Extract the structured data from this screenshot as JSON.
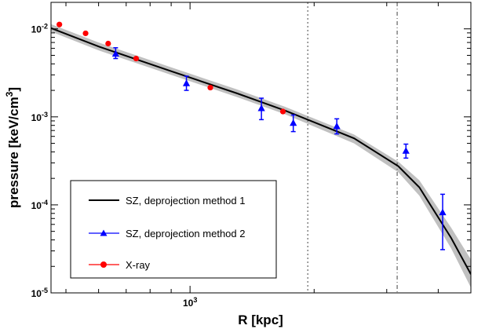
{
  "chart_data": {
    "type": "scatter",
    "xlabel": "R [kpc]",
    "ylabel_main": "pressure [keV/cm",
    "ylabel_sup": "3",
    "ylabel_tail": "]",
    "xscale": "log",
    "yscale": "log",
    "xlim": [
      460,
      4800
    ],
    "ylim": [
      1e-05,
      0.02
    ],
    "x_tick_labels": [
      {
        "value": 1000,
        "base": "10",
        "exp": "3"
      }
    ],
    "y_tick_labels": [
      {
        "value": 0.01,
        "base": "10",
        "exp": "-2"
      },
      {
        "value": 0.001,
        "base": "10",
        "exp": "-3"
      },
      {
        "value": 0.0001,
        "base": "10",
        "exp": "-4"
      },
      {
        "value": 1e-05,
        "base": "10",
        "exp": "-5"
      }
    ],
    "x_minor_ticks": [
      500,
      600,
      700,
      800,
      900,
      2000,
      3000,
      4000
    ],
    "y_minor_ticks": [
      2e-05,
      3e-05,
      4e-05,
      5e-05,
      6e-05,
      7e-05,
      8e-05,
      9e-05,
      0.0002,
      0.0003,
      0.0004,
      0.0005,
      0.0006,
      0.0007,
      0.0008,
      0.0009,
      0.002,
      0.003,
      0.004,
      0.005,
      0.006,
      0.007,
      0.008,
      0.009,
      0.02
    ],
    "vertical_lines": [
      {
        "x": 1930,
        "style": "dotted"
      },
      {
        "x": 3180,
        "style": "dashdot"
      }
    ],
    "legend_position": "bottom-left",
    "series": [
      {
        "name": "SZ, deprojection method 1",
        "kind": "line",
        "color": "#000000",
        "band_color": "#c0c0c0",
        "x": [
          460,
          600,
          900,
          1300,
          1700,
          2500,
          3200,
          3600,
          4300,
          4800
        ],
        "y": [
          0.0102,
          0.0063,
          0.0033,
          0.00185,
          0.00118,
          0.00057,
          0.000275,
          0.000158,
          4.2e-05,
          1.63e-05
        ],
        "band_low": [
          0.0093,
          0.0057,
          0.003,
          0.00168,
          0.00107,
          0.0005,
          0.000235,
          0.000127,
          3.2e-05,
          1.15e-05
        ],
        "band_high": [
          0.0113,
          0.007,
          0.00365,
          0.00205,
          0.0013,
          0.00063,
          0.00031,
          0.00019,
          5.5e-05,
          2.4e-05
        ]
      },
      {
        "name": "SZ, deprojection method 2",
        "kind": "marker-errorbar",
        "marker": "triangle",
        "color": "#0000ff",
        "x": [
          660,
          980,
          1490,
          1780,
          2270,
          3340,
          4100
        ],
        "y": [
          0.0052,
          0.0024,
          0.00125,
          0.00085,
          0.00078,
          0.00041,
          8.2e-05
        ],
        "y_low": [
          0.0046,
          0.002,
          0.00093,
          0.00068,
          0.00064,
          0.00034,
          3.1e-05
        ],
        "y_high": [
          0.0061,
          0.0029,
          0.00163,
          0.00105,
          0.00095,
          0.00049,
          0.000132
        ]
      },
      {
        "name": "X-ray",
        "kind": "marker",
        "marker": "circle",
        "color": "#ff0000",
        "x": [
          482,
          558,
          633,
          740,
          1120,
          1680
        ],
        "y": [
          0.0112,
          0.0089,
          0.0068,
          0.0046,
          0.00215,
          0.00115
        ]
      }
    ]
  }
}
